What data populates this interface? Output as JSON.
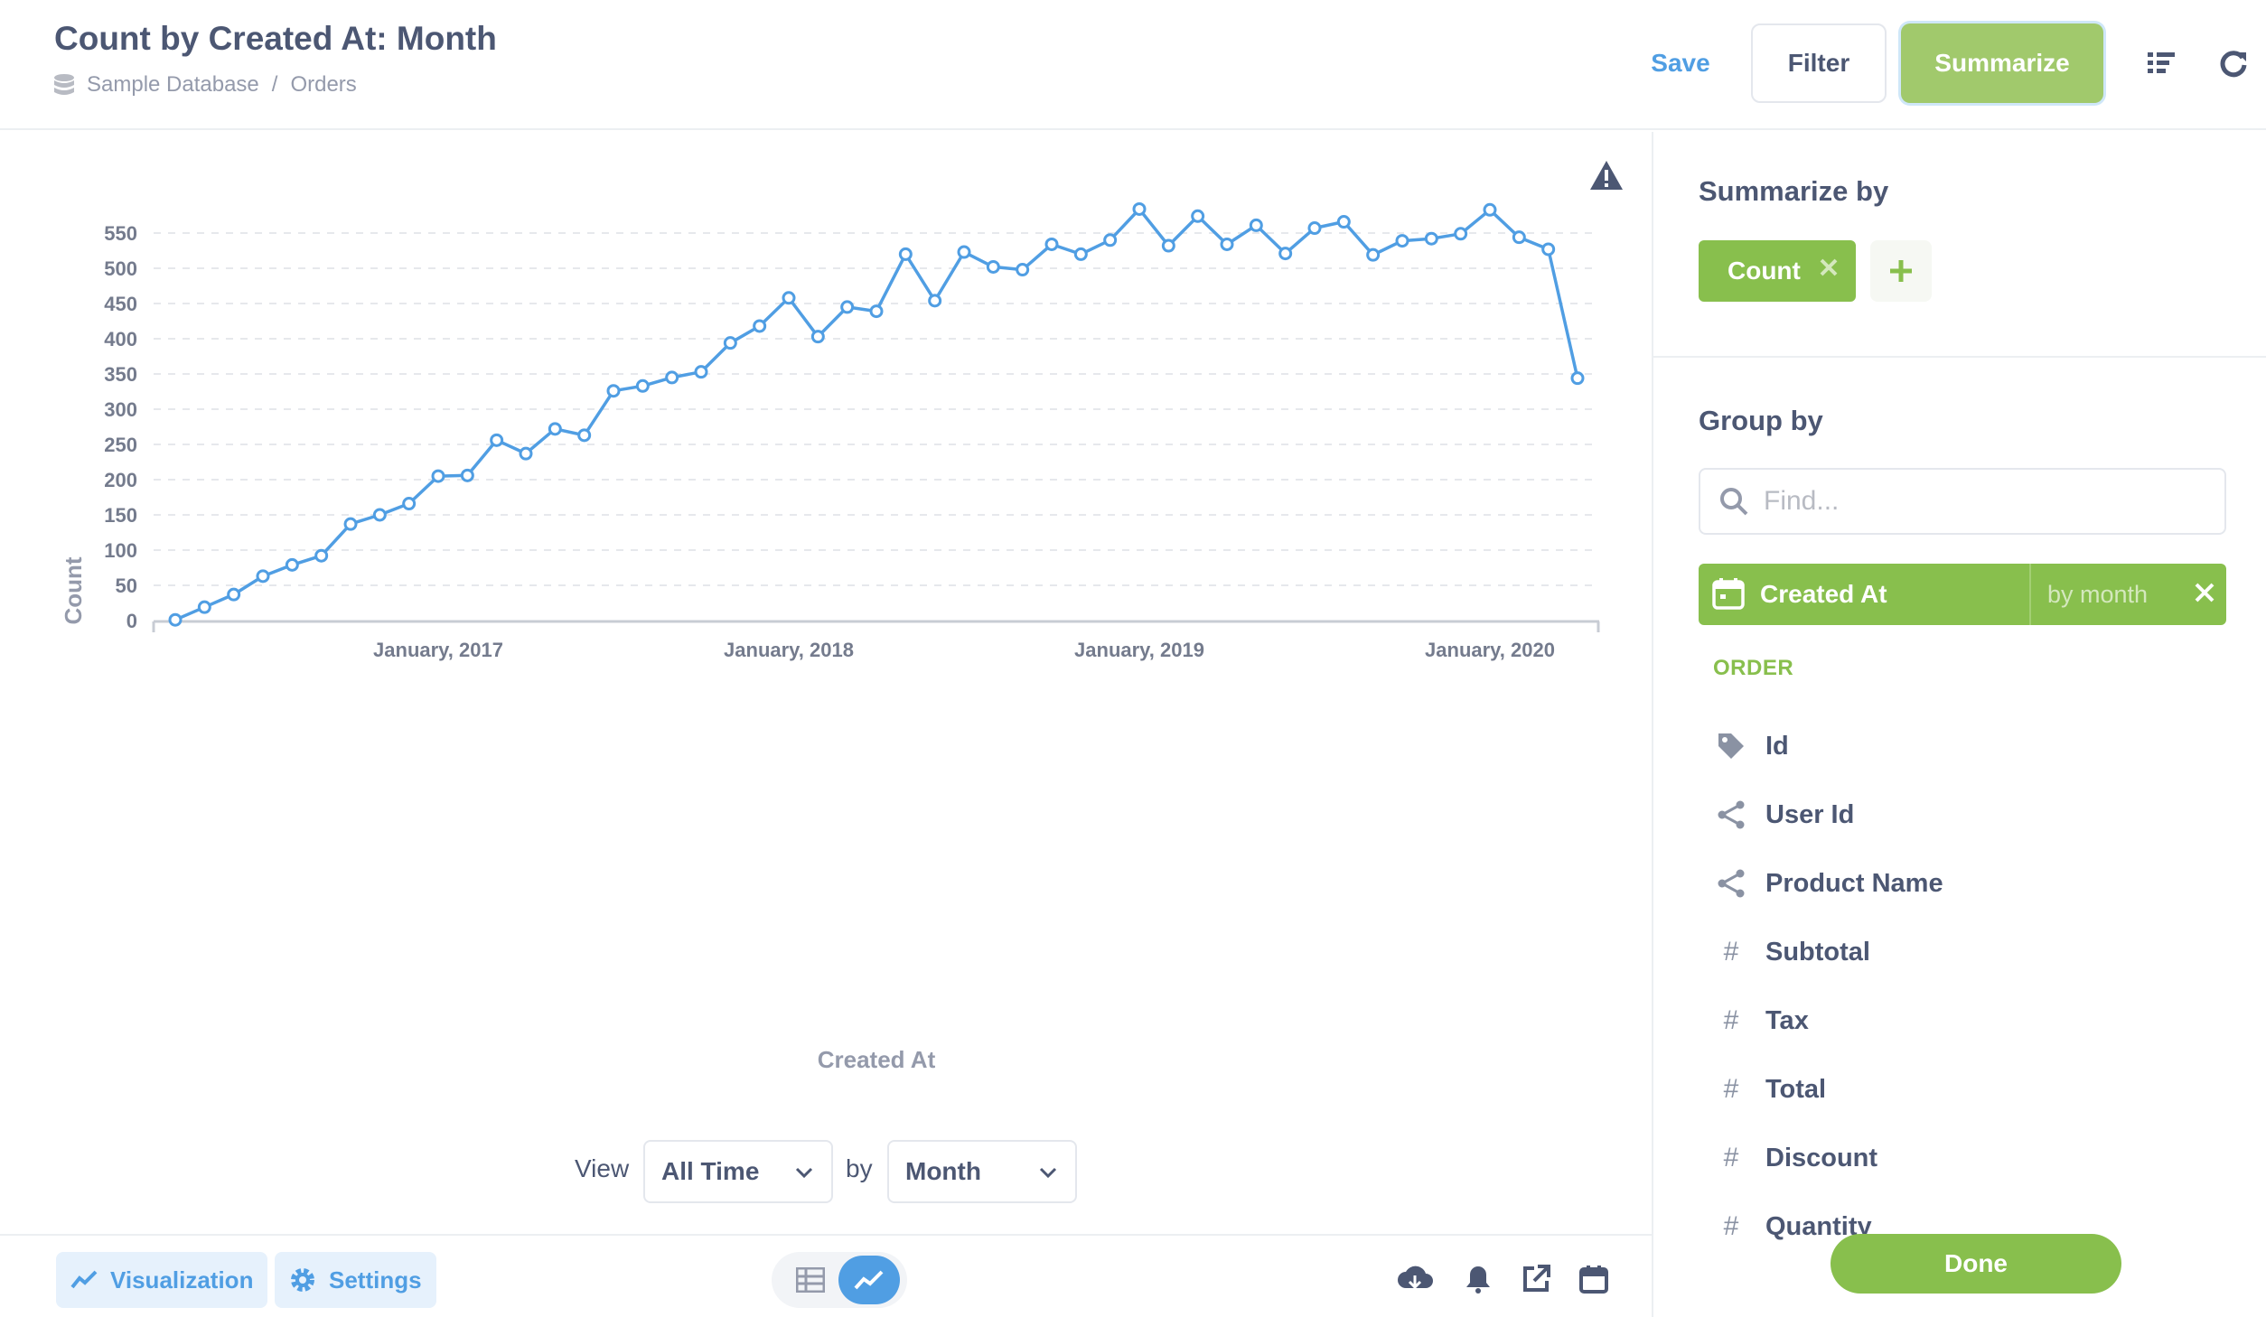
{
  "header": {
    "title": "Count by Created At: Month",
    "breadcrumb": {
      "database": "Sample Database",
      "separator": "/",
      "table": "Orders"
    },
    "save_label": "Save",
    "filter_label": "Filter",
    "summarize_label": "Summarize",
    "icons": [
      "list-icon",
      "refresh-icon"
    ]
  },
  "chart_data": {
    "type": "line",
    "title": "",
    "xlabel": "Created At",
    "ylabel": "Count",
    "ylim": [
      0,
      580
    ],
    "yticks": [
      0,
      50,
      100,
      150,
      200,
      250,
      300,
      350,
      400,
      450,
      500,
      550
    ],
    "xtick_labels": [
      "January, 2017",
      "January, 2018",
      "January, 2019",
      "January, 2020"
    ],
    "x_start": "2016-04",
    "x_end": "2020-04",
    "grid": true,
    "color": "#509ee3",
    "warning_icon": "warning-icon",
    "x": [
      "2016-04",
      "2016-05",
      "2016-06",
      "2016-07",
      "2016-08",
      "2016-09",
      "2016-10",
      "2016-11",
      "2016-12",
      "2017-01",
      "2017-02",
      "2017-03",
      "2017-04",
      "2017-05",
      "2017-06",
      "2017-07",
      "2017-08",
      "2017-09",
      "2017-10",
      "2017-11",
      "2017-12",
      "2018-01",
      "2018-02",
      "2018-03",
      "2018-04",
      "2018-05",
      "2018-06",
      "2018-07",
      "2018-08",
      "2018-09",
      "2018-10",
      "2018-11",
      "2018-12",
      "2019-01",
      "2019-02",
      "2019-03",
      "2019-04",
      "2019-05",
      "2019-06",
      "2019-07",
      "2019-08",
      "2019-09",
      "2019-10",
      "2019-11",
      "2019-12",
      "2020-01",
      "2020-02",
      "2020-03",
      "2020-04"
    ],
    "values": [
      1,
      19,
      37,
      63,
      79,
      92,
      137,
      150,
      166,
      205,
      206,
      256,
      237,
      272,
      263,
      326,
      333,
      345,
      353,
      394,
      418,
      458,
      403,
      445,
      439,
      520,
      454,
      523,
      502,
      498,
      534,
      520,
      540,
      584,
      532,
      574,
      534,
      561,
      521,
      557,
      566,
      519,
      539,
      542,
      549,
      583,
      544,
      527,
      344
    ]
  },
  "view_controls": {
    "view_label": "View",
    "time_value": "All Time",
    "by_label": "by",
    "unit_value": "Month"
  },
  "footer": {
    "visualization_label": "Visualization",
    "settings_label": "Settings",
    "icons": [
      "table-icon",
      "line-chart-icon",
      "download-icon",
      "alert-bell-icon",
      "share-icon",
      "calendar-icon"
    ]
  },
  "sidebar": {
    "summarize_title": "Summarize by",
    "metric_label": "Count",
    "groupby_title": "Group by",
    "find_placeholder": "Find...",
    "selected_dimension": "Created At",
    "selected_unit": "by month",
    "section_label": "ORDER",
    "fields": [
      {
        "label": "Id",
        "icon": "tag-icon"
      },
      {
        "label": "User Id",
        "icon": "connections-icon"
      },
      {
        "label": "Product Name",
        "icon": "connections-icon"
      },
      {
        "label": "Subtotal",
        "icon": "number-icon"
      },
      {
        "label": "Tax",
        "icon": "number-icon"
      },
      {
        "label": "Total",
        "icon": "number-icon"
      },
      {
        "label": "Discount",
        "icon": "number-icon"
      },
      {
        "label": "Quantity",
        "icon": "number-icon"
      }
    ],
    "done_label": "Done"
  }
}
